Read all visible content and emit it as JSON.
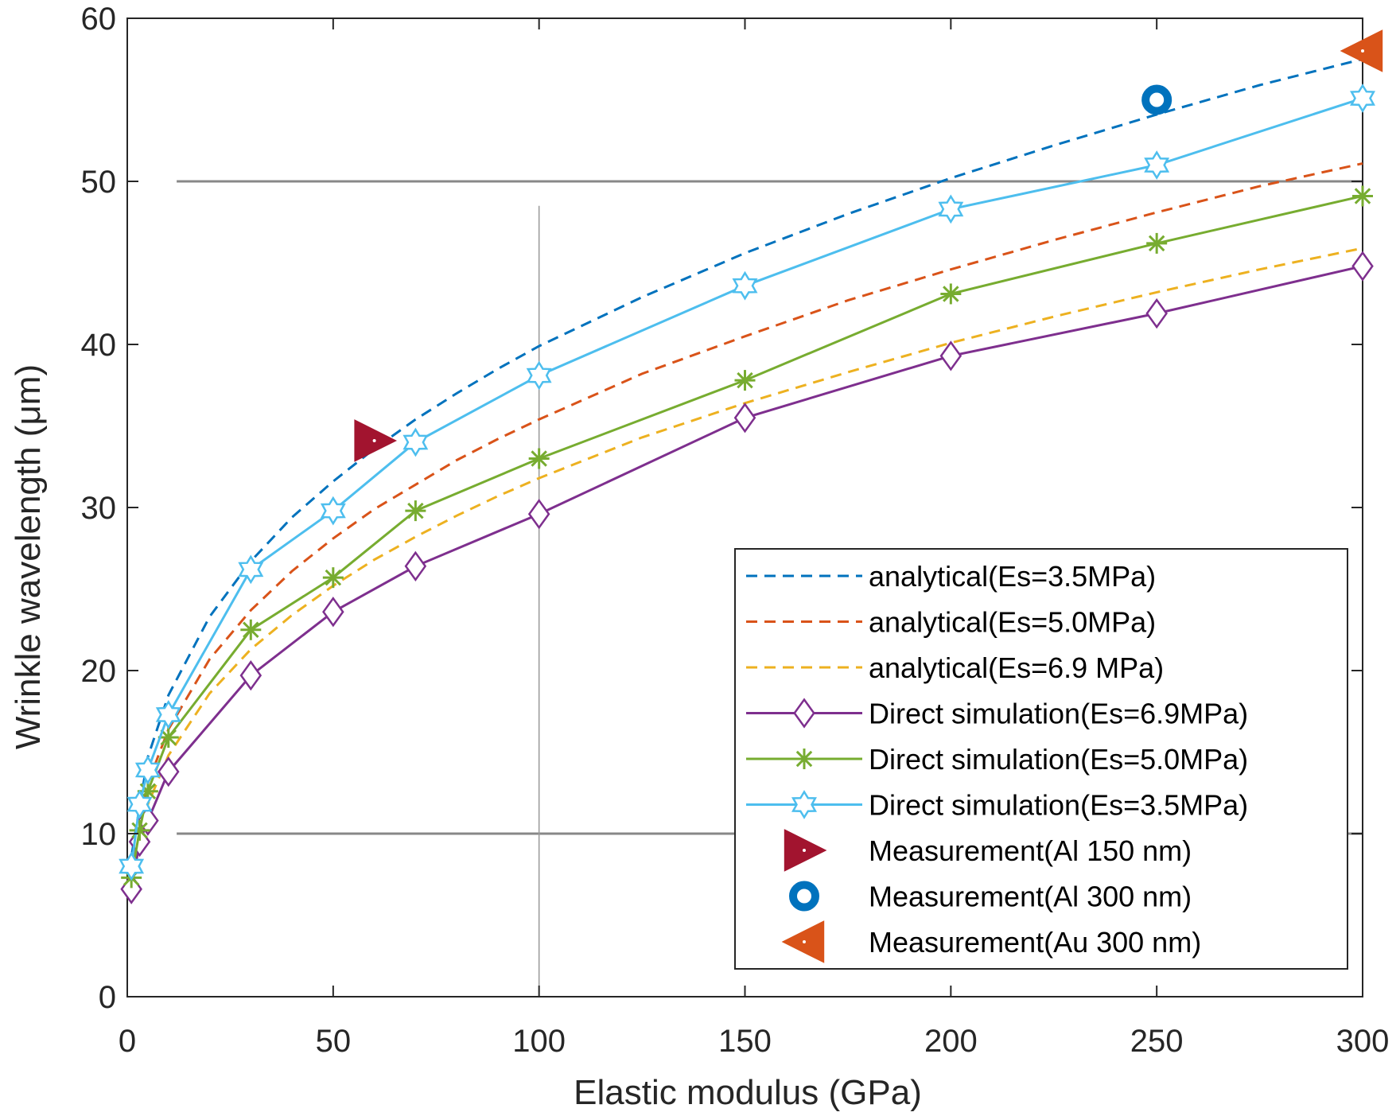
{
  "chart_data": {
    "type": "line",
    "title": "",
    "xlabel": "Elastic modulus (GPa)",
    "ylabel": "Wrinkle wavelength (μm)",
    "xlim": [
      0,
      300
    ],
    "ylim": [
      0,
      60
    ],
    "xticks": [
      0,
      50,
      100,
      150,
      200,
      250,
      300
    ],
    "yticks": [
      0,
      10,
      20,
      30,
      40,
      50,
      60
    ],
    "legend_position": "bottom-right",
    "series": [
      {
        "name": "analytical(Es=3.5MPa)",
        "style": "dashed",
        "marker": "none",
        "color": "#0072BD",
        "x": [
          1,
          5,
          10,
          20,
          30,
          40,
          50,
          60,
          70,
          80,
          90,
          100,
          125,
          150,
          175,
          200,
          225,
          250,
          275,
          300
        ],
        "y": [
          8.6,
          14.7,
          18.5,
          23.3,
          26.7,
          29.4,
          31.6,
          33.6,
          35.4,
          37.0,
          38.5,
          39.9,
          42.9,
          45.6,
          48.0,
          50.2,
          52.2,
          54.1,
          55.9,
          57.5
        ]
      },
      {
        "name": "analytical(Es=5.0MPa)",
        "style": "dashed",
        "marker": "none",
        "color": "#D95319",
        "x": [
          1,
          5,
          10,
          20,
          30,
          40,
          50,
          60,
          70,
          80,
          90,
          100,
          125,
          150,
          175,
          200,
          225,
          250,
          275,
          300
        ],
        "y": [
          7.6,
          13.1,
          16.4,
          20.7,
          23.7,
          26.1,
          28.1,
          29.9,
          31.4,
          32.9,
          34.2,
          35.4,
          38.2,
          40.5,
          42.7,
          44.6,
          46.4,
          48.1,
          49.7,
          51.1
        ]
      },
      {
        "name": "analytical(Es=6.9 MPa)",
        "style": "dashed",
        "marker": "none",
        "color": "#EDB120",
        "x": [
          1,
          5,
          10,
          20,
          30,
          40,
          50,
          60,
          70,
          80,
          90,
          100,
          125,
          150,
          175,
          200,
          225,
          250,
          275,
          300
        ],
        "y": [
          6.9,
          11.8,
          14.8,
          18.6,
          21.3,
          23.4,
          25.2,
          26.8,
          28.2,
          29.5,
          30.7,
          31.8,
          34.3,
          36.4,
          38.3,
          40.1,
          41.7,
          43.2,
          44.6,
          45.9
        ]
      },
      {
        "name": "Direct simulation(Es=6.9MPa)",
        "style": "solid",
        "marker": "diamond",
        "color": "#7E2F8E",
        "x": [
          1,
          3,
          5,
          10,
          30,
          50,
          70,
          100,
          150,
          200,
          250,
          300
        ],
        "y": [
          6.6,
          9.5,
          10.8,
          13.8,
          19.7,
          23.6,
          26.4,
          29.6,
          35.5,
          39.3,
          41.9,
          44.8
        ]
      },
      {
        "name": "Direct simulation(Es=5.0MPa)",
        "style": "solid",
        "marker": "asterisk",
        "color": "#77AC30",
        "x": [
          1,
          3,
          5,
          10,
          30,
          50,
          70,
          100,
          150,
          200,
          250,
          300
        ],
        "y": [
          7.3,
          10.2,
          12.6,
          15.9,
          22.5,
          25.7,
          29.8,
          33.0,
          37.8,
          43.1,
          46.2,
          49.1
        ]
      },
      {
        "name": "Direct simulation(Es=3.5MPa)",
        "style": "solid",
        "marker": "hexagram",
        "color": "#4DBEEE",
        "x": [
          1,
          3,
          5,
          10,
          30,
          50,
          70,
          100,
          150,
          200,
          250,
          300
        ],
        "y": [
          8.0,
          11.8,
          13.9,
          17.3,
          26.2,
          29.8,
          34.0,
          38.1,
          43.6,
          48.3,
          51.0,
          55.1
        ]
      },
      {
        "name": "Measurement(Al 150 nm)",
        "style": "none",
        "marker": "triangle-right",
        "color": "#A2142F",
        "x": [
          60
        ],
        "y": [
          34.1
        ]
      },
      {
        "name": "Measurement(Al 300 nm)",
        "style": "none",
        "marker": "circle",
        "color": "#0072BD",
        "x": [
          250
        ],
        "y": [
          55.0
        ]
      },
      {
        "name": "Measurement(Au 300 nm)",
        "style": "none",
        "marker": "triangle-left",
        "color": "#D95319",
        "x": [
          300
        ],
        "y": [
          58.0
        ]
      }
    ]
  }
}
